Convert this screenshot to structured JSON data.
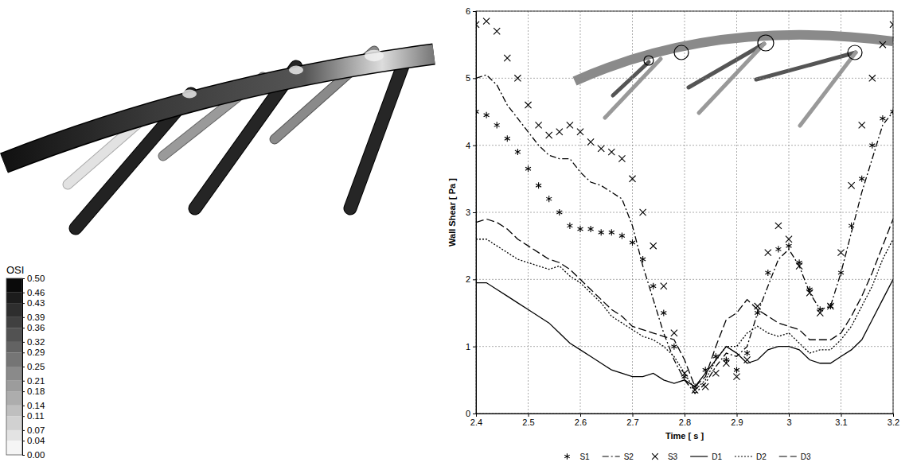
{
  "chart_data": [
    {
      "type": "contour",
      "colorbar": {
        "title": "OSI",
        "range": [
          0,
          0.5
        ],
        "ticks": [
          {
            "value": 0.5,
            "label": "0.50"
          },
          {
            "value": 0.46,
            "label": "0.46"
          },
          {
            "value": 0.43,
            "label": "0.43"
          },
          {
            "value": 0.39,
            "label": "0.39"
          },
          {
            "value": 0.36,
            "label": "0.36"
          },
          {
            "value": 0.32,
            "label": "0.32"
          },
          {
            "value": 0.29,
            "label": "0.29"
          },
          {
            "value": 0.25,
            "label": "0.25"
          },
          {
            "value": 0.21,
            "label": "0.21"
          },
          {
            "value": 0.18,
            "label": "0.18"
          },
          {
            "value": 0.14,
            "label": "0.14"
          },
          {
            "value": 0.11,
            "label": "0.11"
          },
          {
            "value": 0.07,
            "label": "0.07"
          },
          {
            "value": 0.04,
            "label": "0.04"
          },
          {
            "value": 0,
            "label": "0.00"
          }
        ]
      }
    },
    {
      "type": "line",
      "xlabel": "Time [ s ]",
      "ylabel": "Wall Shear [ Pa ]",
      "xlim": [
        2.4,
        3.2
      ],
      "xticks": [
        2.4,
        2.5,
        2.6,
        2.7,
        2.8,
        2.9,
        3,
        3.1,
        3.2
      ],
      "ylim": [
        0,
        6
      ],
      "yticks": [
        0,
        1,
        2,
        3,
        4,
        5,
        6
      ],
      "grid": true,
      "legend": "bottom",
      "x": [
        2.4,
        2.42,
        2.44,
        2.46,
        2.48,
        2.5,
        2.52,
        2.54,
        2.56,
        2.58,
        2.6,
        2.62,
        2.64,
        2.66,
        2.68,
        2.7,
        2.72,
        2.74,
        2.76,
        2.78,
        2.8,
        2.82,
        2.84,
        2.86,
        2.88,
        2.9,
        2.92,
        2.94,
        2.96,
        2.98,
        3.0,
        3.02,
        3.04,
        3.06,
        3.08,
        3.1,
        3.12,
        3.14,
        3.16,
        3.18,
        3.2
      ],
      "series": [
        {
          "name": "S1",
          "color": "#000000",
          "marker": "asterisk",
          "line_style": "none",
          "values": [
            4.5,
            4.45,
            4.3,
            4.1,
            3.9,
            3.65,
            3.4,
            3.2,
            3.0,
            2.8,
            2.75,
            2.75,
            2.7,
            2.7,
            2.65,
            2.55,
            2.3,
            1.9,
            1.5,
            1.0,
            0.55,
            0.4,
            0.65,
            0.85,
            0.8,
            0.65,
            0.9,
            1.5,
            2.1,
            2.45,
            2.5,
            2.25,
            1.85,
            1.55,
            1.6,
            2.1,
            2.8,
            3.5,
            4.0,
            4.4,
            4.5
          ]
        },
        {
          "name": "S2",
          "color": "#000000",
          "marker": "none",
          "line_style": "dashdot",
          "values": [
            5.0,
            5.05,
            4.9,
            4.6,
            4.4,
            4.2,
            4.0,
            3.85,
            3.8,
            3.8,
            3.6,
            3.45,
            3.4,
            3.3,
            3.2,
            2.8,
            2.2,
            1.7,
            1.2,
            0.8,
            0.5,
            0.3,
            0.45,
            0.7,
            0.9,
            0.85,
            1.0,
            1.5,
            1.9,
            2.3,
            2.45,
            2.2,
            1.8,
            1.55,
            1.6,
            2.1,
            2.7,
            3.3,
            3.8,
            4.3,
            4.5
          ]
        },
        {
          "name": "S3",
          "color": "#000000",
          "marker": "x",
          "line_style": "none",
          "values": [
            5.8,
            5.85,
            5.7,
            5.3,
            5.0,
            4.6,
            4.3,
            4.15,
            4.2,
            4.3,
            4.2,
            4.05,
            3.95,
            3.9,
            3.8,
            3.5,
            3.0,
            2.5,
            1.9,
            1.2,
            0.6,
            0.35,
            0.4,
            0.6,
            0.75,
            0.55,
            0.8,
            1.6,
            2.4,
            2.8,
            2.6,
            2.2,
            1.8,
            1.5,
            1.6,
            2.4,
            3.4,
            4.3,
            5.0,
            5.5,
            5.8
          ]
        },
        {
          "name": "D1",
          "color": "#000000",
          "marker": "none",
          "line_style": "solid",
          "values": [
            1.95,
            1.95,
            1.85,
            1.75,
            1.65,
            1.55,
            1.45,
            1.35,
            1.2,
            1.05,
            0.95,
            0.85,
            0.75,
            0.65,
            0.6,
            0.55,
            0.55,
            0.6,
            0.5,
            0.45,
            0.5,
            0.4,
            0.6,
            0.8,
            1.0,
            0.9,
            0.75,
            0.8,
            0.95,
            1.0,
            1.0,
            0.95,
            0.8,
            0.75,
            0.75,
            0.85,
            0.95,
            1.1,
            1.4,
            1.7,
            2.0
          ]
        },
        {
          "name": "D2",
          "color": "#000000",
          "marker": "none",
          "line_style": "dotted",
          "values": [
            2.6,
            2.6,
            2.5,
            2.4,
            2.3,
            2.25,
            2.2,
            2.15,
            2.2,
            2.05,
            1.95,
            1.8,
            1.65,
            1.45,
            1.35,
            1.25,
            1.15,
            1.1,
            1.0,
            0.85,
            0.6,
            0.35,
            0.5,
            0.8,
            1.0,
            1.0,
            1.2,
            1.3,
            1.2,
            1.15,
            1.2,
            1.05,
            0.9,
            0.95,
            0.95,
            1.1,
            1.3,
            1.6,
            1.9,
            2.3,
            2.6
          ]
        },
        {
          "name": "D3",
          "color": "#000000",
          "marker": "none",
          "line_style": "dashed",
          "values": [
            2.85,
            2.9,
            2.85,
            2.75,
            2.6,
            2.5,
            2.4,
            2.3,
            2.25,
            2.15,
            2.0,
            1.85,
            1.7,
            1.55,
            1.45,
            1.3,
            1.25,
            1.2,
            1.15,
            1.1,
            0.8,
            0.4,
            0.55,
            1.0,
            1.4,
            1.5,
            1.7,
            1.55,
            1.45,
            1.35,
            1.3,
            1.25,
            1.1,
            1.1,
            1.1,
            1.2,
            1.45,
            1.75,
            2.1,
            2.5,
            2.9
          ]
        }
      ]
    }
  ]
}
